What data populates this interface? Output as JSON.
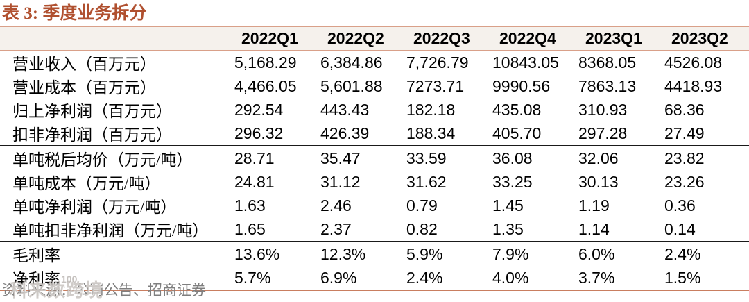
{
  "title": "表 3:  季度业务拆分",
  "table": {
    "header": [
      "",
      "2022Q1",
      "2022Q2",
      "2022Q3",
      "2022Q4",
      "2023Q1",
      "2023Q2"
    ],
    "rows": [
      {
        "label": "营业收入（百万元）",
        "values": [
          "5,168.29",
          "6,384.86",
          "7,726.79",
          "10843.05",
          "8368.05",
          "4526.08"
        ],
        "section_start": false
      },
      {
        "label": "营业成本（百万元）",
        "values": [
          "4,466.05",
          "5,601.88",
          "7273.71",
          "9990.56",
          "7863.13",
          "4418.93"
        ],
        "section_start": false
      },
      {
        "label": "归上净利润（百万元）",
        "values": [
          "292.54",
          "443.43",
          "182.18",
          "435.08",
          "310.93",
          "68.36"
        ],
        "section_start": false
      },
      {
        "label": "扣非净利润（百万元）",
        "values": [
          "296.32",
          "426.39",
          "188.34",
          "405.70",
          "297.28",
          "27.49"
        ],
        "section_start": false
      },
      {
        "label": "单吨税后均价（万元/吨）",
        "values": [
          "28.71",
          "35.47",
          "33.59",
          "36.08",
          "32.06",
          "23.82"
        ],
        "section_start": true
      },
      {
        "label": "单吨成本（万元/吨）",
        "values": [
          "24.81",
          "31.12",
          "31.62",
          "33.25",
          "30.13",
          "23.26"
        ],
        "section_start": false
      },
      {
        "label": "单吨净利润（万元/吨）",
        "values": [
          "1.63",
          "2.46",
          "0.79",
          "1.45",
          "1.19",
          "0.36"
        ],
        "section_start": false
      },
      {
        "label": "单吨扣非净利润（万元/吨）",
        "values": [
          "1.65",
          "2.37",
          "0.82",
          "1.35",
          "1.14",
          "0.14"
        ],
        "section_start": false
      },
      {
        "label": "毛利率",
        "values": [
          "13.6%",
          "12.3%",
          "5.9%",
          "7.9%",
          "6.0%",
          "2.4%"
        ],
        "section_start": true
      },
      {
        "label": "净利率",
        "values": [
          "5.7%",
          "6.9%",
          "2.4%",
          "4.0%",
          "3.7%",
          "1.5%"
        ],
        "section_start": false
      }
    ]
  },
  "footer": {
    "source": "资料来源：公司公告、招商证券",
    "watermark_text": "科来数跨境",
    "watermark_badge": "100"
  },
  "colors": {
    "title": "#b0502f",
    "header_bg": "#f5f1ec",
    "header_border": "#d9a089",
    "section_divider": "#1a1a1a",
    "bottom_rule": "#c97e60",
    "footer_text": "#7f7f7f"
  }
}
